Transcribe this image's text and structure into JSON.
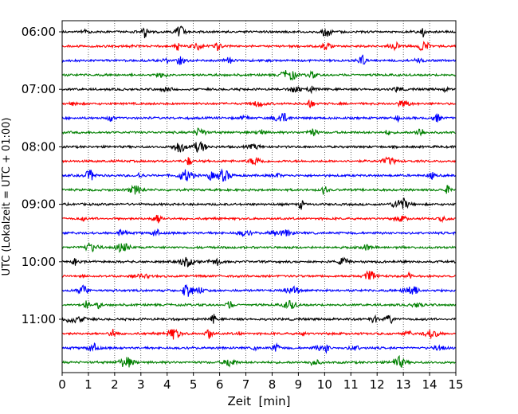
{
  "chart_data": {
    "type": "line",
    "title": "",
    "xlabel": "Zeit  [min]",
    "ylabel": "UTC (Lokalzeit = UTC + 01:00)",
    "xlim": [
      0,
      15
    ],
    "x_ticks": [
      "0",
      "1",
      "2",
      "3",
      "4",
      "5",
      "6",
      "7",
      "8",
      "9",
      "10",
      "11",
      "12",
      "13",
      "14",
      "15"
    ],
    "y_ticks": [
      "06:00",
      "07:00",
      "08:00",
      "09:00",
      "10:00",
      "11:00"
    ],
    "grid": "vertical-dotted",
    "trace_colors": [
      "#000000",
      "#ff0000",
      "#0000ff",
      "#008000"
    ],
    "trace_count": 24,
    "trace_interval_min": 15,
    "start_time": "06:00"
  }
}
